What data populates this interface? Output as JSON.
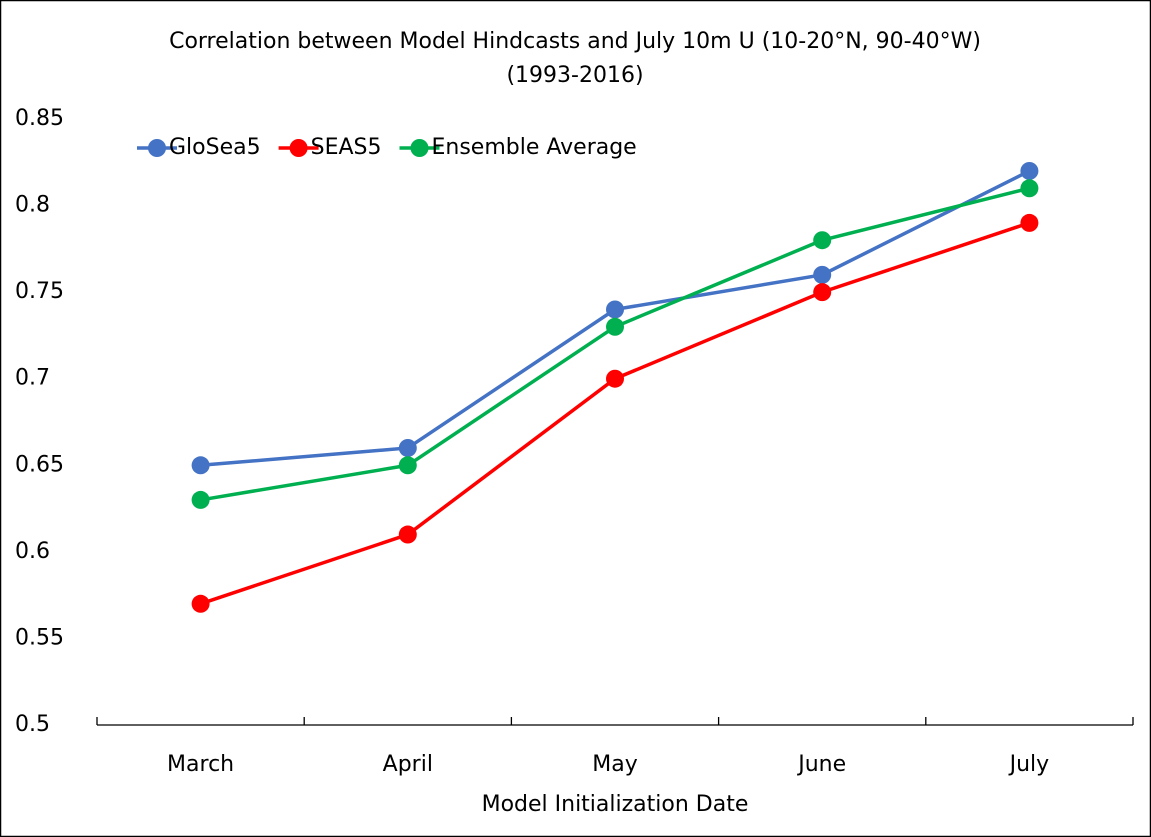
{
  "chart_data": {
    "type": "line",
    "title": "Correlation between Model Hindcasts and July 10m U (10-20°N, 90-40°W)",
    "subtitle": "(1993-2016)",
    "x_label": "Model Initialization Date",
    "categories": [
      "March",
      "April",
      "May",
      "June",
      "July"
    ],
    "series": [
      {
        "name": "GloSea5",
        "color": "#4472c4",
        "values": [
          0.65,
          0.66,
          0.74,
          0.76,
          0.82
        ]
      },
      {
        "name": "SEAS5",
        "color": "#ff0000",
        "values": [
          0.57,
          0.61,
          0.7,
          0.75,
          0.79
        ]
      },
      {
        "name": "Ensemble Average",
        "color": "#00b050",
        "values": [
          0.63,
          0.65,
          0.73,
          0.78,
          0.81
        ]
      }
    ],
    "ylim": [
      0.5,
      0.85
    ],
    "yticks": [
      0.5,
      0.55,
      0.6,
      0.65,
      0.7,
      0.75,
      0.8,
      0.85
    ],
    "grid": false,
    "legend": "top-left"
  }
}
